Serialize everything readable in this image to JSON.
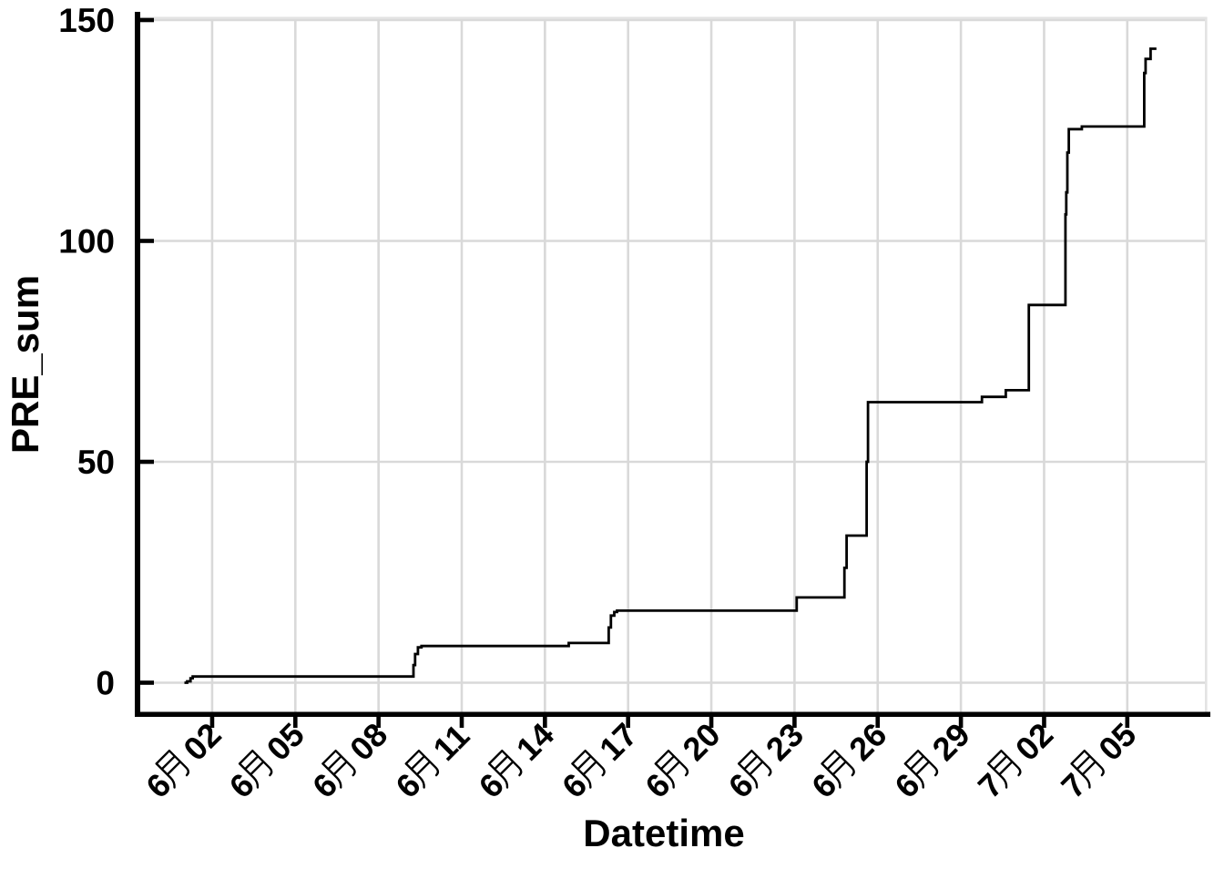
{
  "chart_data": {
    "type": "line",
    "title": "",
    "xlabel": "Datetime",
    "ylabel": "PRE_sum",
    "x_tick_labels": [
      "6月 02",
      "6月 05",
      "6月 08",
      "6月 11",
      "6月 14",
      "6月 17",
      "6月 20",
      "6月 23",
      "6月 26",
      "6月 29",
      "7月 02",
      "7月 05"
    ],
    "x_tick_days_since_jun1": [
      1,
      4,
      7,
      10,
      13,
      16,
      19,
      22,
      25,
      28,
      31,
      34
    ],
    "y_tick_labels": [
      "0",
      "50",
      "100",
      "150"
    ],
    "y_tick_values": [
      0,
      50,
      100,
      150
    ],
    "ylim": [
      0,
      150
    ],
    "grid": true,
    "legend_position": "none",
    "colors": {
      "line": "#000000",
      "grid": "#d9d9d9",
      "axis": "#000000",
      "text": "#000000",
      "panel_border": "#e3e3e3",
      "background": "#ffffff"
    },
    "series": [
      {
        "name": "PRE_sum",
        "step": "after",
        "points_day_value": [
          [
            0.0,
            0.0
          ],
          [
            0.1,
            0.3
          ],
          [
            0.22,
            1.0
          ],
          [
            0.3,
            1.4
          ],
          [
            8.2,
            1.4
          ],
          [
            8.26,
            4.0
          ],
          [
            8.32,
            6.5
          ],
          [
            8.42,
            8.0
          ],
          [
            8.55,
            8.3
          ],
          [
            13.8,
            8.3
          ],
          [
            13.86,
            9.0
          ],
          [
            15.24,
            9.0
          ],
          [
            15.3,
            12.5
          ],
          [
            15.38,
            15.2
          ],
          [
            15.5,
            16.0
          ],
          [
            15.6,
            16.3
          ],
          [
            21.98,
            16.3
          ],
          [
            22.08,
            19.3
          ],
          [
            23.74,
            19.3
          ],
          [
            23.8,
            26.0
          ],
          [
            23.88,
            33.3
          ],
          [
            24.54,
            33.3
          ],
          [
            24.6,
            50.0
          ],
          [
            24.65,
            63.5
          ],
          [
            28.7,
            63.5
          ],
          [
            28.76,
            64.7
          ],
          [
            29.54,
            64.7
          ],
          [
            29.62,
            66.2
          ],
          [
            30.38,
            66.2
          ],
          [
            30.45,
            85.5
          ],
          [
            31.72,
            85.5
          ],
          [
            31.77,
            106.0
          ],
          [
            31.8,
            111.0
          ],
          [
            31.84,
            120.0
          ],
          [
            31.89,
            125.3
          ],
          [
            32.28,
            125.3
          ],
          [
            32.36,
            125.9
          ],
          [
            34.55,
            125.9
          ],
          [
            34.61,
            138.0
          ],
          [
            34.66,
            141.2
          ],
          [
            34.79,
            141.2
          ],
          [
            34.84,
            143.5
          ],
          [
            35.05,
            143.5
          ]
        ]
      }
    ]
  }
}
